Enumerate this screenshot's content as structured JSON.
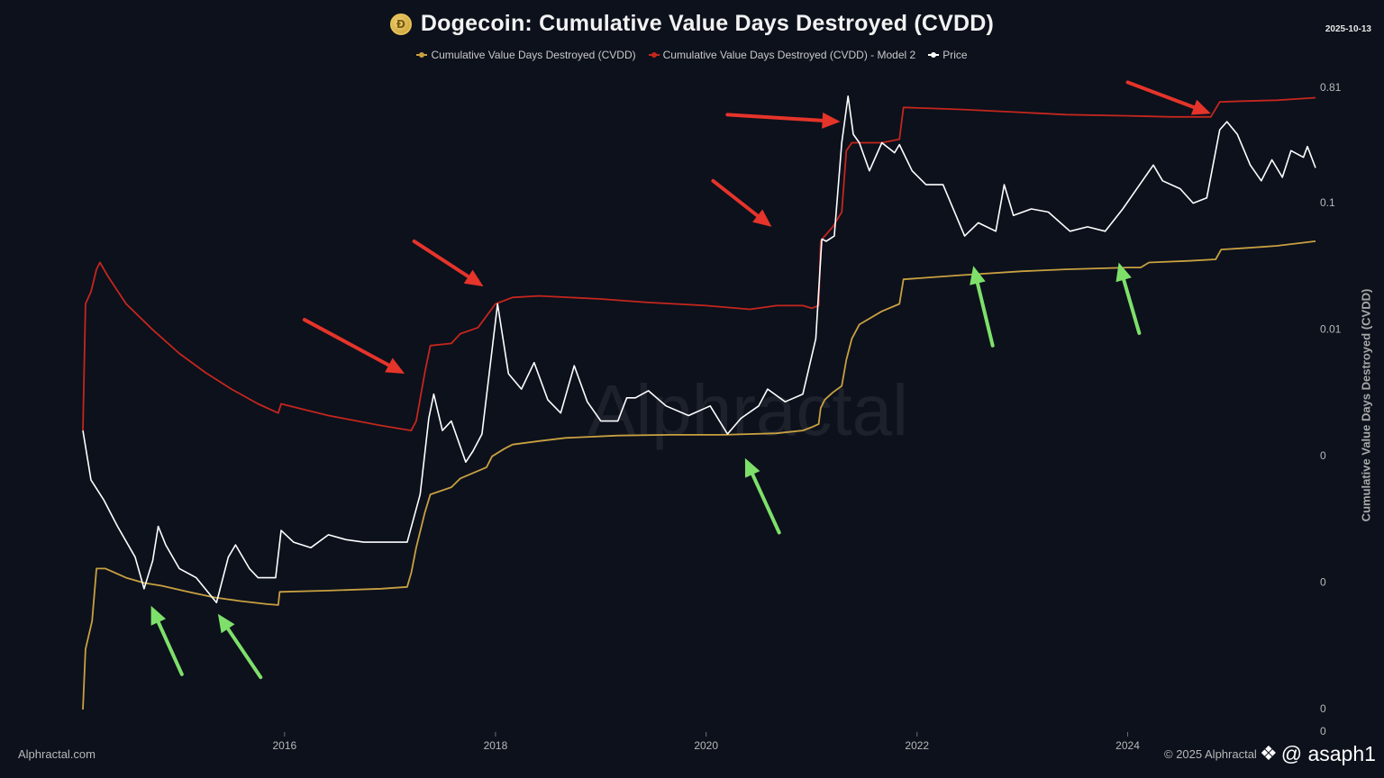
{
  "header": {
    "title": "Dogecoin: Cumulative Value Days Destroyed (CVDD)",
    "date": "2025-10-13",
    "coin_icon": "dogecoin-coin-icon"
  },
  "footer": {
    "source": "Alphractal.com",
    "copyright": "© 2025 Alphractal ",
    "handle": "@ asaph1",
    "handle_icon": "diamond-logo-icon"
  },
  "watermark": "Alphractal",
  "colors": {
    "background": "#0c111c",
    "cvdd": "#c9a040",
    "model2": "#c4261d",
    "price": "#ffffff",
    "arrow_red": "#e5342a",
    "arrow_green": "#7ee06a"
  },
  "chart_data": {
    "type": "line",
    "title": "Dogecoin: Cumulative Value Days Destroyed (CVDD)",
    "xlabel": "",
    "ylabel": "Cumulative Value Days Destroyed (CVDD)",
    "y_scale": "log",
    "ylim": [
      1e-05,
      1
    ],
    "xlim": [
      "2014-02-01",
      "2025-10-13"
    ],
    "x_ticks": [
      {
        "x": "2016-01-01",
        "label": "2016"
      },
      {
        "x": "2018-01-01",
        "label": "2018"
      },
      {
        "x": "2020-01-01",
        "label": "2020"
      },
      {
        "x": "2022-01-01",
        "label": "2022"
      },
      {
        "x": "2024-01-01",
        "label": "2024"
      }
    ],
    "y_ticks": [
      {
        "y": 0.81,
        "label": "0.81"
      },
      {
        "y": 0.1,
        "label": "0.1"
      },
      {
        "y": 0.01,
        "label": "0.01"
      },
      {
        "y": 0.001,
        "label": "0"
      },
      {
        "y": 0.0001,
        "label": "0"
      },
      {
        "y": 1e-05,
        "label": "0"
      }
    ],
    "y_bottom_label": "0",
    "grid": false,
    "legend_position": "top-center",
    "series": [
      {
        "name": "Cumulative Value Days Destroyed (CVDD)",
        "color": "#c9a040",
        "points": [
          [
            "2014-02-01",
            1e-05
          ],
          [
            "2014-02-10",
            3e-05
          ],
          [
            "2014-03-05",
            5e-05
          ],
          [
            "2014-03-20",
            0.00013
          ],
          [
            "2014-04-20",
            0.00013
          ],
          [
            "2014-07-01",
            0.00011
          ],
          [
            "2014-09-01",
            0.0001
          ],
          [
            "2014-11-01",
            9.5e-05
          ],
          [
            "2015-02-01",
            8.5e-05
          ],
          [
            "2015-05-01",
            7.7e-05
          ],
          [
            "2015-08-01",
            7.2e-05
          ],
          [
            "2015-11-01",
            6.8e-05
          ],
          [
            "2015-12-10",
            6.7e-05
          ],
          [
            "2015-12-15",
            8.5e-05
          ],
          [
            "2016-06-01",
            8.7e-05
          ],
          [
            "2016-12-01",
            9e-05
          ],
          [
            "2017-03-01",
            9.3e-05
          ],
          [
            "2017-03-15",
            0.00012
          ],
          [
            "2017-04-01",
            0.00019
          ],
          [
            "2017-05-01",
            0.00036
          ],
          [
            "2017-05-20",
            0.0005
          ],
          [
            "2017-08-01",
            0.00057
          ],
          [
            "2017-09-01",
            0.00067
          ],
          [
            "2017-12-01",
            0.00082
          ],
          [
            "2017-12-20",
            0.001
          ],
          [
            "2018-02-01",
            0.00115
          ],
          [
            "2018-03-01",
            0.00124
          ],
          [
            "2018-06-01",
            0.00132
          ],
          [
            "2018-09-01",
            0.0014
          ],
          [
            "2019-03-01",
            0.00146
          ],
          [
            "2019-09-01",
            0.00148
          ],
          [
            "2020-03-01",
            0.00148
          ],
          [
            "2020-09-01",
            0.00152
          ],
          [
            "2020-12-01",
            0.0016
          ],
          [
            "2021-01-01",
            0.0017
          ],
          [
            "2021-01-25",
            0.0018
          ],
          [
            "2021-02-01",
            0.0024
          ],
          [
            "2021-02-15",
            0.0028
          ],
          [
            "2021-03-15",
            0.0032
          ],
          [
            "2021-04-15",
            0.0036
          ],
          [
            "2021-05-01",
            0.0058
          ],
          [
            "2021-05-20",
            0.0085
          ],
          [
            "2021-06-15",
            0.011
          ],
          [
            "2021-09-01",
            0.014
          ],
          [
            "2021-11-01",
            0.016
          ],
          [
            "2021-11-15",
            0.025
          ],
          [
            "2022-06-01",
            0.027
          ],
          [
            "2023-01-01",
            0.029
          ],
          [
            "2023-06-01",
            0.03
          ],
          [
            "2024-01-01",
            0.031
          ],
          [
            "2024-02-15",
            0.031
          ],
          [
            "2024-03-15",
            0.034
          ],
          [
            "2024-08-01",
            0.035
          ],
          [
            "2024-11-01",
            0.036
          ],
          [
            "2024-11-20",
            0.043
          ],
          [
            "2025-02-01",
            0.044
          ],
          [
            "2025-06-01",
            0.046
          ],
          [
            "2025-10-13",
            0.05
          ]
        ]
      },
      {
        "name": "Cumulative Value Days Destroyed (CVDD) - Model 2",
        "color": "#c4261d",
        "points": [
          [
            "2014-02-01",
            0.0016
          ],
          [
            "2014-02-10",
            0.016
          ],
          [
            "2014-03-01",
            0.02
          ],
          [
            "2014-03-20",
            0.03
          ],
          [
            "2014-04-01",
            0.034
          ],
          [
            "2014-05-01",
            0.026
          ],
          [
            "2014-07-01",
            0.016
          ],
          [
            "2014-10-01",
            0.01
          ],
          [
            "2015-01-01",
            0.0065
          ],
          [
            "2015-04-01",
            0.0046
          ],
          [
            "2015-07-01",
            0.0034
          ],
          [
            "2015-10-01",
            0.0026
          ],
          [
            "2015-12-10",
            0.0022
          ],
          [
            "2015-12-20",
            0.0026
          ],
          [
            "2016-06-01",
            0.0021
          ],
          [
            "2016-12-01",
            0.00175
          ],
          [
            "2017-03-15",
            0.0016
          ],
          [
            "2017-04-01",
            0.0019
          ],
          [
            "2017-05-01",
            0.0046
          ],
          [
            "2017-05-20",
            0.0075
          ],
          [
            "2017-08-01",
            0.0078
          ],
          [
            "2017-09-01",
            0.0093
          ],
          [
            "2017-11-01",
            0.0104
          ],
          [
            "2018-01-01",
            0.016
          ],
          [
            "2018-03-01",
            0.018
          ],
          [
            "2018-06-01",
            0.0185
          ],
          [
            "2019-01-01",
            0.0175
          ],
          [
            "2019-06-01",
            0.0165
          ],
          [
            "2020-01-01",
            0.0155
          ],
          [
            "2020-06-01",
            0.0145
          ],
          [
            "2020-09-01",
            0.0155
          ],
          [
            "2020-12-01",
            0.0155
          ],
          [
            "2021-01-01",
            0.0148
          ],
          [
            "2021-01-25",
            0.0155
          ],
          [
            "2021-02-01",
            0.05
          ],
          [
            "2021-02-15",
            0.055
          ],
          [
            "2021-03-15",
            0.065
          ],
          [
            "2021-04-15",
            0.085
          ],
          [
            "2021-05-01",
            0.26
          ],
          [
            "2021-05-20",
            0.3
          ],
          [
            "2021-06-15",
            0.3
          ],
          [
            "2021-09-01",
            0.3
          ],
          [
            "2021-11-01",
            0.32
          ],
          [
            "2021-11-15",
            0.57
          ],
          [
            "2022-06-01",
            0.55
          ],
          [
            "2023-01-01",
            0.52
          ],
          [
            "2023-06-01",
            0.5
          ],
          [
            "2024-01-01",
            0.49
          ],
          [
            "2024-06-01",
            0.48
          ],
          [
            "2024-10-15",
            0.48
          ],
          [
            "2024-11-15",
            0.63
          ],
          [
            "2025-02-01",
            0.64
          ],
          [
            "2025-06-01",
            0.65
          ],
          [
            "2025-10-13",
            0.68
          ]
        ]
      },
      {
        "name": "Price",
        "color": "#ffffff",
        "points": [
          [
            "2014-02-01",
            0.0016
          ],
          [
            "2014-03-01",
            0.00065
          ],
          [
            "2014-04-15",
            0.00045
          ],
          [
            "2014-06-01",
            0.00028
          ],
          [
            "2014-08-01",
            0.00016
          ],
          [
            "2014-09-01",
            9e-05
          ],
          [
            "2014-10-01",
            0.00015
          ],
          [
            "2014-10-20",
            0.00028
          ],
          [
            "2014-11-15",
            0.0002
          ],
          [
            "2015-01-01",
            0.00013
          ],
          [
            "2015-03-01",
            0.00011
          ],
          [
            "2015-05-10",
            7e-05
          ],
          [
            "2015-06-20",
            0.00016
          ],
          [
            "2015-07-15",
            0.0002
          ],
          [
            "2015-09-01",
            0.00013
          ],
          [
            "2015-10-01",
            0.00011
          ],
          [
            "2015-12-01",
            0.00011
          ],
          [
            "2015-12-20",
            0.00026
          ],
          [
            "2016-02-01",
            0.00021
          ],
          [
            "2016-04-01",
            0.00019
          ],
          [
            "2016-06-01",
            0.00024
          ],
          [
            "2016-08-01",
            0.00022
          ],
          [
            "2016-10-01",
            0.00021
          ],
          [
            "2016-12-01",
            0.00021
          ],
          [
            "2017-03-01",
            0.00021
          ],
          [
            "2017-04-15",
            0.0005
          ],
          [
            "2017-05-15",
            0.002
          ],
          [
            "2017-06-01",
            0.0031
          ],
          [
            "2017-07-01",
            0.0016
          ],
          [
            "2017-08-01",
            0.0019
          ],
          [
            "2017-09-20",
            0.0009
          ],
          [
            "2017-10-15",
            0.0011
          ],
          [
            "2017-11-15",
            0.0015
          ],
          [
            "2018-01-08",
            0.016
          ],
          [
            "2018-02-15",
            0.0045
          ],
          [
            "2018-04-01",
            0.0034
          ],
          [
            "2018-05-15",
            0.0055
          ],
          [
            "2018-07-01",
            0.0028
          ],
          [
            "2018-08-15",
            0.0022
          ],
          [
            "2018-10-01",
            0.0052
          ],
          [
            "2018-11-15",
            0.0027
          ],
          [
            "2019-01-01",
            0.0019
          ],
          [
            "2019-03-01",
            0.0019
          ],
          [
            "2019-04-01",
            0.0029
          ],
          [
            "2019-05-01",
            0.0029
          ],
          [
            "2019-06-15",
            0.0033
          ],
          [
            "2019-08-15",
            0.0025
          ],
          [
            "2019-11-01",
            0.0021
          ],
          [
            "2020-01-15",
            0.0025
          ],
          [
            "2020-03-15",
            0.0015
          ],
          [
            "2020-05-01",
            0.002
          ],
          [
            "2020-07-01",
            0.0025
          ],
          [
            "2020-08-01",
            0.0034
          ],
          [
            "2020-10-01",
            0.0027
          ],
          [
            "2020-12-01",
            0.0031
          ],
          [
            "2021-01-15",
            0.0085
          ],
          [
            "2021-02-05",
            0.052
          ],
          [
            "2021-02-20",
            0.05
          ],
          [
            "2021-03-20",
            0.055
          ],
          [
            "2021-04-15",
            0.3
          ],
          [
            "2021-05-07",
            0.7
          ],
          [
            "2021-05-25",
            0.35
          ],
          [
            "2021-06-15",
            0.3
          ],
          [
            "2021-07-20",
            0.18
          ],
          [
            "2021-09-01",
            0.3
          ],
          [
            "2021-10-15",
            0.25
          ],
          [
            "2021-11-01",
            0.29
          ],
          [
            "2021-12-15",
            0.18
          ],
          [
            "2022-02-01",
            0.14
          ],
          [
            "2022-04-01",
            0.14
          ],
          [
            "2022-06-15",
            0.055
          ],
          [
            "2022-08-01",
            0.07
          ],
          [
            "2022-10-01",
            0.06
          ],
          [
            "2022-10-30",
            0.14
          ],
          [
            "2022-12-01",
            0.08
          ],
          [
            "2023-02-01",
            0.09
          ],
          [
            "2023-04-01",
            0.085
          ],
          [
            "2023-06-15",
            0.06
          ],
          [
            "2023-08-15",
            0.065
          ],
          [
            "2023-10-15",
            0.06
          ],
          [
            "2023-12-15",
            0.09
          ],
          [
            "2024-03-30",
            0.2
          ],
          [
            "2024-05-01",
            0.15
          ],
          [
            "2024-07-01",
            0.13
          ],
          [
            "2024-08-15",
            0.1
          ],
          [
            "2024-10-01",
            0.11
          ],
          [
            "2024-11-15",
            0.38
          ],
          [
            "2024-12-10",
            0.44
          ],
          [
            "2025-01-15",
            0.35
          ],
          [
            "2025-03-01",
            0.2
          ],
          [
            "2025-04-08",
            0.15
          ],
          [
            "2025-05-15",
            0.22
          ],
          [
            "2025-06-20",
            0.16
          ],
          [
            "2025-07-20",
            0.26
          ],
          [
            "2025-09-01",
            0.23
          ],
          [
            "2025-09-15",
            0.28
          ],
          [
            "2025-10-13",
            0.19
          ]
        ]
      }
    ]
  },
  "annotations": [
    {
      "type": "arrow",
      "color": "#e5342a",
      "from": [
        "2016-03-10",
        0.012
      ],
      "to": [
        "2017-02-20",
        0.0045
      ]
    },
    {
      "type": "arrow",
      "color": "#e5342a",
      "from": [
        "2017-03-25",
        0.05
      ],
      "to": [
        "2017-11-20",
        0.022
      ]
    },
    {
      "type": "arrow",
      "color": "#e5342a",
      "from": [
        "2020-01-25",
        0.15
      ],
      "to": [
        "2020-08-15",
        0.065
      ]
    },
    {
      "type": "arrow",
      "color": "#e5342a",
      "from": [
        "2020-03-15",
        0.5
      ],
      "to": [
        "2021-04-10",
        0.44
      ]
    },
    {
      "type": "arrow",
      "color": "#e5342a",
      "from": [
        "2024-01-01",
        0.9
      ],
      "to": [
        "2024-10-15",
        0.51
      ]
    },
    {
      "type": "arrow",
      "color": "#7ee06a",
      "from": [
        "2015-01-10",
        1.9e-05
      ],
      "to": [
        "2014-09-25",
        6.6e-05
      ]
    },
    {
      "type": "arrow",
      "color": "#7ee06a",
      "from": [
        "2015-10-10",
        1.8e-05
      ],
      "to": [
        "2015-05-15",
        5.7e-05
      ]
    },
    {
      "type": "arrow",
      "color": "#7ee06a",
      "from": [
        "2020-09-10",
        0.00025
      ],
      "to": [
        "2020-05-15",
        0.00097
      ]
    },
    {
      "type": "arrow",
      "color": "#7ee06a",
      "from": [
        "2022-09-20",
        0.0075
      ],
      "to": [
        "2022-07-15",
        0.032
      ]
    },
    {
      "type": "arrow",
      "color": "#7ee06a",
      "from": [
        "2024-02-10",
        0.0094
      ],
      "to": [
        "2023-12-01",
        0.034
      ]
    }
  ]
}
